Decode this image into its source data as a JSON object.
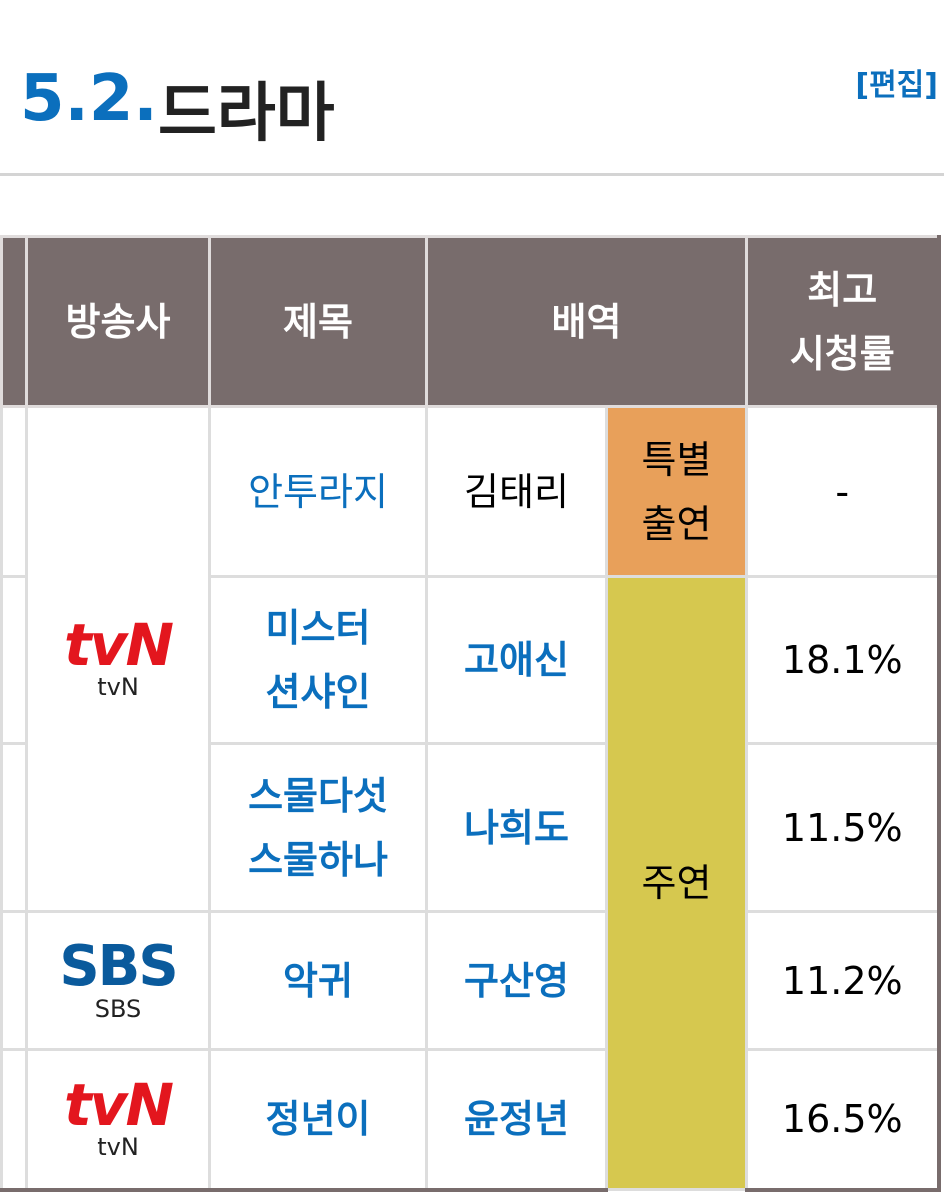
{
  "header": {
    "number": "5.2.",
    "title": "드라마",
    "edit": "[편집]"
  },
  "table": {
    "columns": [
      "방송사",
      "제목",
      "배역",
      "최고 시청률"
    ],
    "rows": [
      {
        "broadcaster": {
          "logo": "tvN",
          "name": "tvN"
        },
        "title": "안투라지",
        "actor": "김태리",
        "role": "특별 출연",
        "rating": "-"
      },
      {
        "title": "미스터 션샤인",
        "actor": "고애신",
        "role": "주연",
        "rating": "18.1%"
      },
      {
        "title": "스물다섯 스물하나",
        "actor": "나희도",
        "rating": "11.5%"
      },
      {
        "broadcaster": {
          "logo": "SBS",
          "name": "SBS"
        },
        "title": "악귀",
        "actor": "구산영",
        "rating": "11.2%"
      },
      {
        "broadcaster": {
          "logo": "tvN",
          "name": "tvN"
        },
        "title": "정년이",
        "actor": "윤정년",
        "rating": "16.5%"
      }
    ]
  }
}
